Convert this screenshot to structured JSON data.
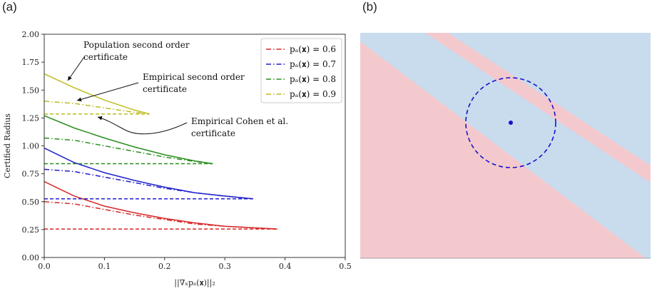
{
  "panels": {
    "a_label": "(a)",
    "b_label": "(b)"
  },
  "chart_data": [
    {
      "type": "line",
      "panel": "(a)",
      "xlabel": "||∇ₓpₐ(𝐱)||₂",
      "ylabel": "Certified Radius",
      "xlim": [
        0.0,
        0.5
      ],
      "ylim": [
        0.0,
        2.0
      ],
      "xticks": [
        "0.0",
        "0.1",
        "0.2",
        "0.3",
        "0.4",
        "0.5"
      ],
      "yticks": [
        "0.00",
        "0.25",
        "0.50",
        "0.75",
        "1.00",
        "1.25",
        "1.50",
        "1.75",
        "2.00"
      ],
      "grid": false,
      "legend_position": "top-right",
      "legend": [
        {
          "label": "pₐ(𝐱) =  0.6",
          "color": "#d62728"
        },
        {
          "label": "pₐ(𝐱) =  0.7",
          "color": "#1f1fcc"
        },
        {
          "label": "pₐ(𝐱) =  0.8",
          "color": "#2a8f1f"
        },
        {
          "label": "pₐ(𝐱) =  0.9",
          "color": "#bcbd22"
        }
      ],
      "series": [
        {
          "p": 0.6,
          "color": "#d62728",
          "population": {
            "x": [
              0,
              0.05,
              0.1,
              0.15,
              0.2,
              0.25,
              0.3,
              0.35,
              0.387
            ],
            "y": [
              0.68,
              0.55,
              0.46,
              0.4,
              0.35,
              0.31,
              0.28,
              0.265,
              0.255
            ]
          },
          "empirical": {
            "x": [
              0,
              0.05,
              0.1,
              0.15,
              0.2,
              0.25,
              0.3,
              0.35,
              0.387
            ],
            "y": [
              0.5,
              0.48,
              0.43,
              0.38,
              0.34,
              0.3,
              0.28,
              0.265,
              0.255
            ]
          },
          "cohen": {
            "x": [
              0,
              0.387
            ],
            "y": [
              0.255,
              0.255
            ]
          }
        },
        {
          "p": 0.7,
          "color": "#1f1fcc",
          "population": {
            "x": [
              0,
              0.05,
              0.1,
              0.15,
              0.2,
              0.25,
              0.3,
              0.347
            ],
            "y": [
              0.98,
              0.85,
              0.76,
              0.69,
              0.63,
              0.58,
              0.55,
              0.525
            ]
          },
          "empirical": {
            "x": [
              0,
              0.05,
              0.1,
              0.15,
              0.2,
              0.25,
              0.3,
              0.347
            ],
            "y": [
              0.79,
              0.77,
              0.72,
              0.67,
              0.62,
              0.58,
              0.55,
              0.525
            ]
          },
          "cohen": {
            "x": [
              0,
              0.347
            ],
            "y": [
              0.525,
              0.525
            ]
          }
        },
        {
          "p": 0.8,
          "color": "#2a8f1f",
          "population": {
            "x": [
              0,
              0.05,
              0.1,
              0.15,
              0.2,
              0.25,
              0.28
            ],
            "y": [
              1.27,
              1.16,
              1.07,
              0.99,
              0.92,
              0.865,
              0.84
            ]
          },
          "empirical": {
            "x": [
              0,
              0.05,
              0.1,
              0.15,
              0.2,
              0.25,
              0.28
            ],
            "y": [
              1.07,
              1.05,
              1.0,
              0.95,
              0.9,
              0.86,
              0.84
            ]
          },
          "cohen": {
            "x": [
              0,
              0.28
            ],
            "y": [
              0.84,
              0.84
            ]
          }
        },
        {
          "p": 0.9,
          "color": "#bcbd22",
          "population": {
            "x": [
              0,
              0.05,
              0.1,
              0.15,
              0.175
            ],
            "y": [
              1.645,
              1.52,
              1.41,
              1.32,
              1.285
            ]
          },
          "empirical": {
            "x": [
              0,
              0.05,
              0.1,
              0.15,
              0.175
            ],
            "y": [
              1.4,
              1.38,
              1.34,
              1.3,
              1.285
            ]
          },
          "cohen": {
            "x": [
              0,
              0.175
            ],
            "y": [
              1.285,
              1.285
            ]
          }
        }
      ],
      "annotations": [
        {
          "lines": [
            "Population second order",
            "certificate"
          ]
        },
        {
          "lines": [
            "Empirical second order",
            "certificate"
          ]
        },
        {
          "lines": [
            "Empirical Cohen et al.",
            "certificate"
          ]
        }
      ]
    },
    {
      "type": "diagram",
      "panel": "(b)",
      "colors": {
        "blue_region": "#c8dcee",
        "red_region": "#f4c9cd",
        "circle": "#1414cc"
      }
    }
  ]
}
